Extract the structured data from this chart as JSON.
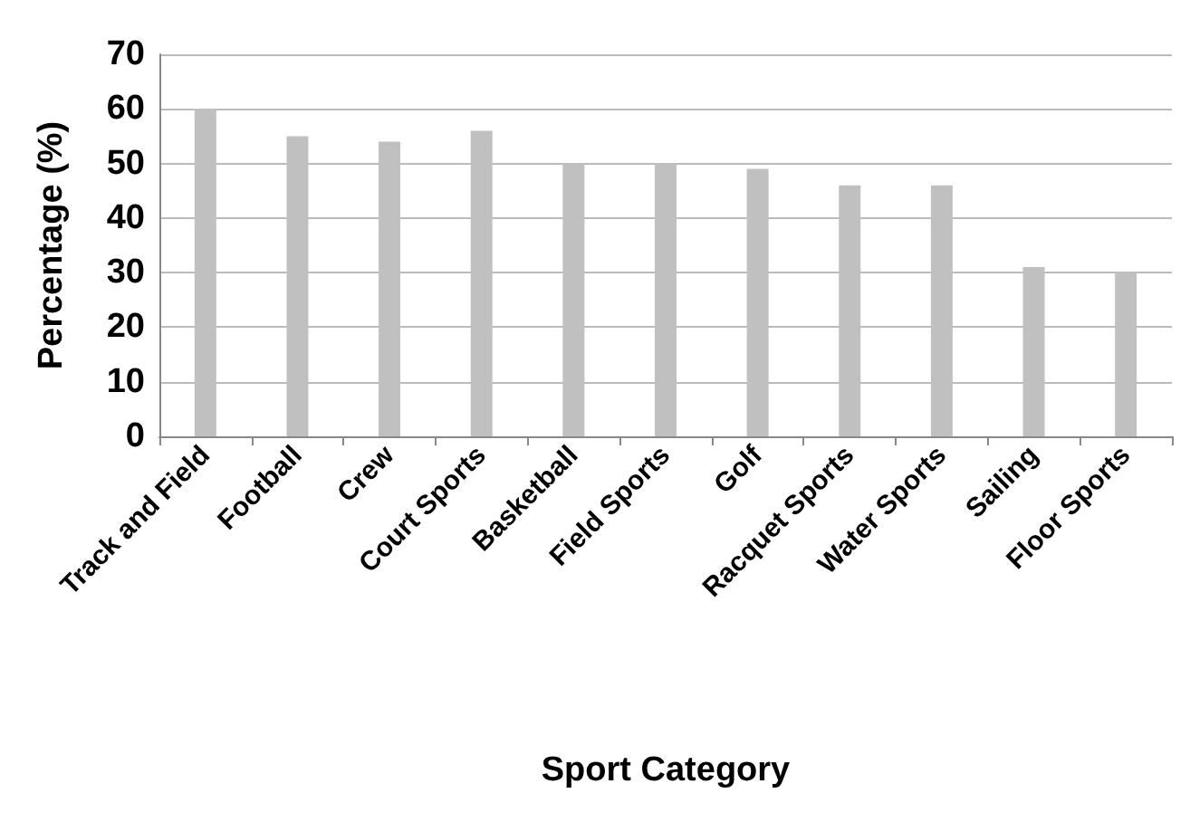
{
  "chart_data": {
    "type": "bar",
    "xlabel": "Sport Category",
    "ylabel": "Percentage (%)",
    "categories": [
      "Track and Field",
      "Football",
      "Crew",
      "Court Sports",
      "Basketball",
      "Field Sports",
      "Golf",
      "Racquet Sports",
      "Water Sports",
      "Sailing",
      "Floor Sports"
    ],
    "values": [
      60,
      55,
      54,
      56,
      50,
      50,
      49,
      46,
      46,
      31,
      30
    ],
    "color": "#c0c0c0",
    "ylim": [
      0,
      70
    ],
    "yticks": [
      0,
      10,
      20,
      30,
      40,
      50,
      60,
      70
    ],
    "grid": "y"
  }
}
